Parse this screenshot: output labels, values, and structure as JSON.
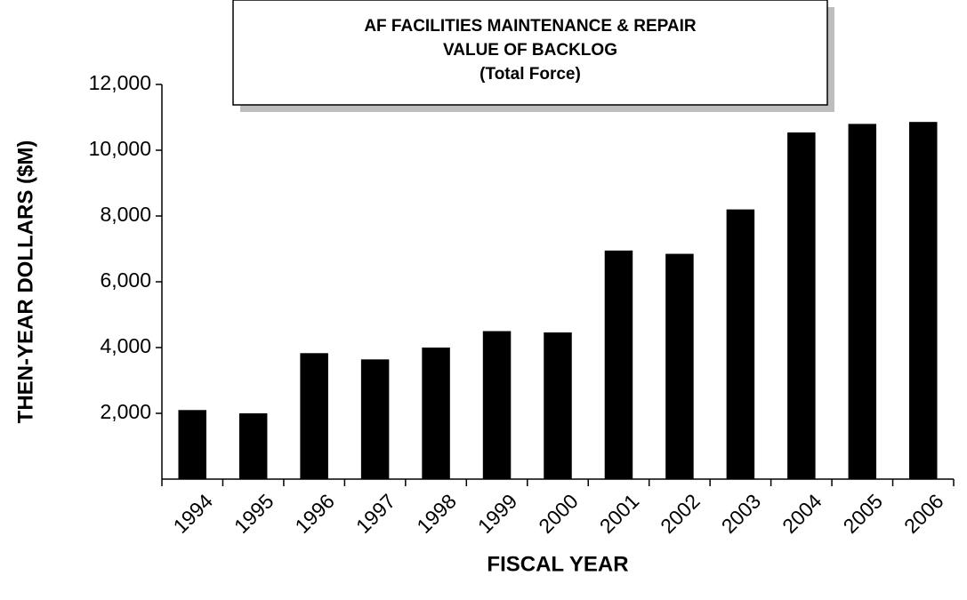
{
  "chart_data": {
    "type": "bar",
    "title": [
      "AF FACILITIES MAINTENANCE & REPAIR",
      "VALUE OF BACKLOG",
      "(Total Force)"
    ],
    "x_label": "FISCAL YEAR",
    "y_label": "THEN-YEAR DOLLARS ($M)",
    "categories": [
      "1994",
      "1995",
      "1996",
      "1997",
      "1998",
      "1999",
      "2000",
      "2001",
      "2002",
      "2003",
      "2004",
      "2005",
      "2006"
    ],
    "values": [
      2100,
      2000,
      3830,
      3640,
      4000,
      4500,
      4460,
      6950,
      6850,
      8200,
      10540,
      10800,
      10860
    ],
    "color": "#000000",
    "ylim": [
      0,
      12000
    ],
    "yticks": [
      {
        "value": 2000,
        "label": "2,000"
      },
      {
        "value": 4000,
        "label": "4,000"
      },
      {
        "value": 6000,
        "label": "6,000"
      },
      {
        "value": 8000,
        "label": "8,000"
      },
      {
        "value": 10000,
        "label": "10,000"
      },
      {
        "value": 12000,
        "label": "12,000"
      }
    ],
    "grid": false
  }
}
